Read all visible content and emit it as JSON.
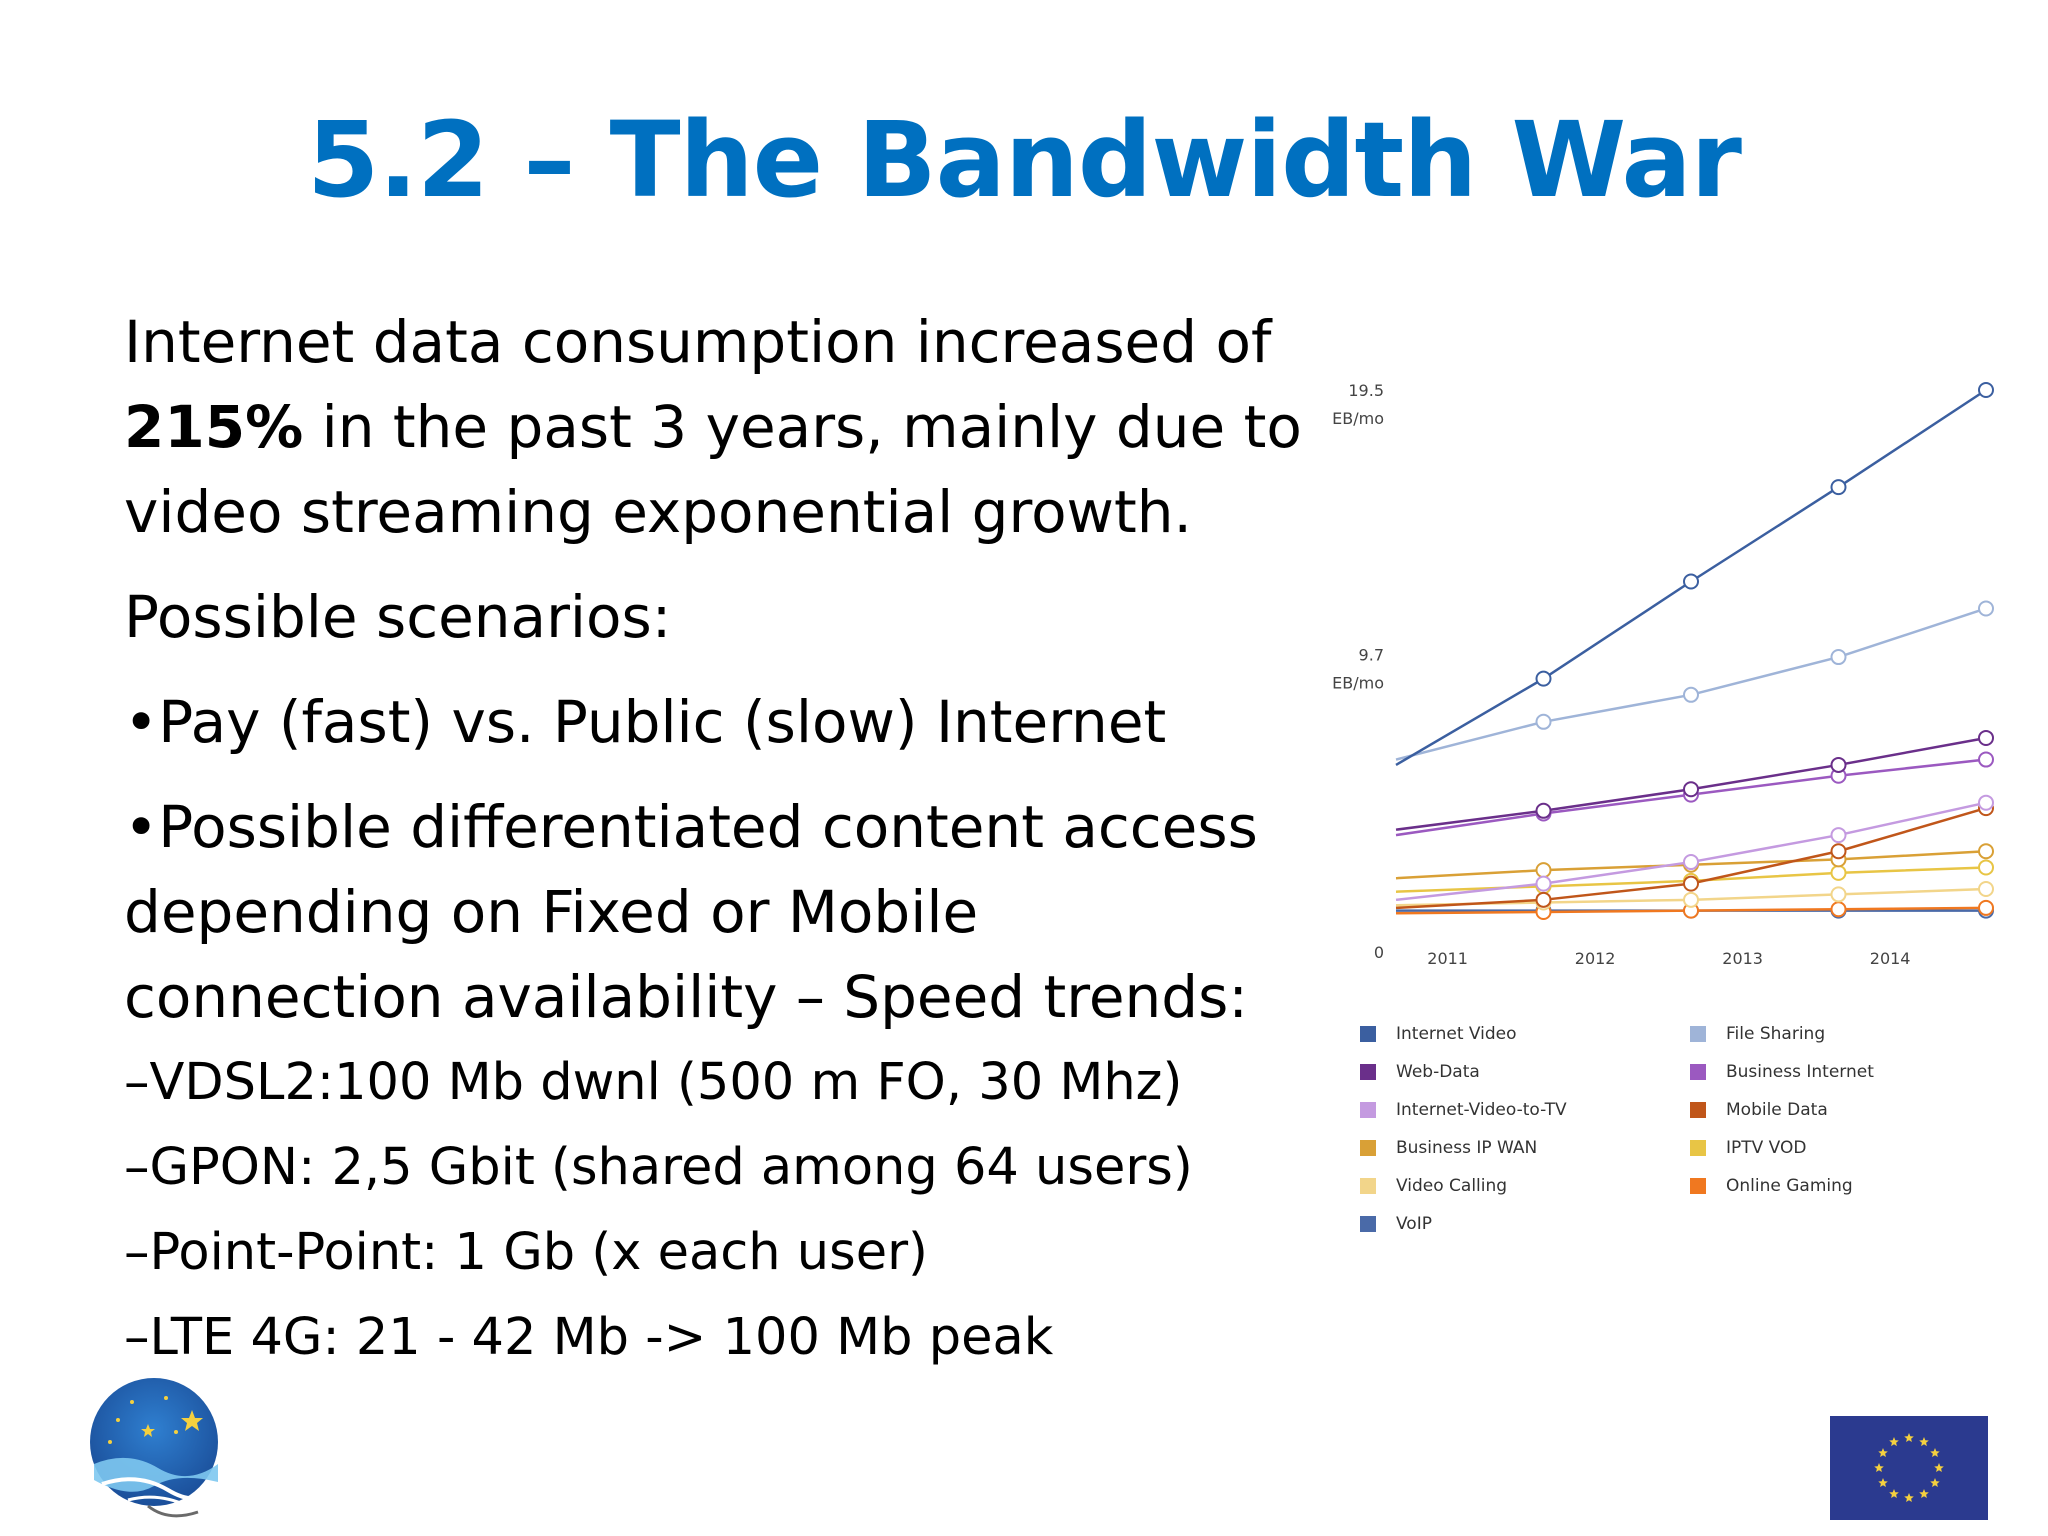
{
  "slide": {
    "title": "5.2 – The Bandwidth War",
    "paragraph1_part1": "Internet data consumption increased of ",
    "paragraph1_bold": "215%",
    "paragraph1_part2": " in the past 3 years, mainly due to video streaming exponential growth.",
    "paragraph2": "Possible scenarios:",
    "bullet1": "•Pay (fast) vs. Public (slow) Internet",
    "bullet2": "•Possible differentiated content access depending on Fixed or Mobile connection availability – Speed trends:",
    "sub_items": [
      "–VDSL2:100 Mb dwnl (500 m FO, 30 Mhz)",
      "–GPON: 2,5 Gbit (shared among 64 users)",
      "–Point-Point: 1 Gb (x each user)",
      "–LTE 4G: 21 - 42  Mb -> 100 Mb peak"
    ]
  },
  "chart_data": {
    "type": "line",
    "title": "",
    "xlabel": "",
    "ylabel": "",
    "x": [
      2010.5,
      2011.5,
      2012.5,
      2013.5,
      2014.5
    ],
    "x_tick_labels": [
      "2011",
      "2012",
      "2013",
      "2014"
    ],
    "y_tick_labels": [
      {
        "value": 19.5,
        "label_value": "19.5",
        "label_unit": "EB/mo"
      },
      {
        "value": 9.7,
        "label_value": "9.7",
        "label_unit": "EB/mo"
      },
      {
        "value": 0,
        "label_value": "0",
        "label_unit": ""
      }
    ],
    "ylim": [
      0,
      19.5
    ],
    "legend_placement": "bottom",
    "series": [
      {
        "name": "Internet Video",
        "color": "#3b5fa0",
        "values": [
          5.6,
          8.8,
          12.4,
          15.9,
          19.5
        ]
      },
      {
        "name": "File Sharing",
        "color": "#9fb4d8",
        "values": [
          5.8,
          7.2,
          8.2,
          9.6,
          11.4
        ]
      },
      {
        "name": "Web-Data",
        "color": "#6a2f8a",
        "values": [
          3.2,
          3.9,
          4.7,
          5.6,
          6.6
        ]
      },
      {
        "name": "Business Internet",
        "color": "#9b59c0",
        "values": [
          3.0,
          3.8,
          4.5,
          5.2,
          5.8
        ]
      },
      {
        "name": "Internet-Video-to-TV",
        "color": "#c49ae0",
        "values": [
          0.6,
          1.2,
          2.0,
          3.0,
          4.2
        ]
      },
      {
        "name": "Mobile Data",
        "color": "#c0561a",
        "values": [
          0.3,
          0.6,
          1.2,
          2.4,
          4.0
        ]
      },
      {
        "name": "Business IP WAN",
        "color": "#d9a036",
        "values": [
          1.4,
          1.7,
          1.9,
          2.1,
          2.4
        ]
      },
      {
        "name": "IPTV VOD",
        "color": "#e8c545",
        "values": [
          0.9,
          1.1,
          1.3,
          1.6,
          1.8
        ]
      },
      {
        "name": "Video Calling",
        "color": "#f2d58a",
        "values": [
          0.4,
          0.5,
          0.6,
          0.8,
          1.0
        ]
      },
      {
        "name": "Online Gaming",
        "color": "#f07820",
        "values": [
          0.1,
          0.15,
          0.2,
          0.25,
          0.3
        ]
      },
      {
        "name": "VoIP",
        "color": "#4a6aa8",
        "values": [
          0.2,
          0.2,
          0.2,
          0.2,
          0.2
        ]
      }
    ]
  },
  "logos": {
    "left_icon": "fishing-ring-logo-icon",
    "right_icon": "eu-flag-icon"
  }
}
